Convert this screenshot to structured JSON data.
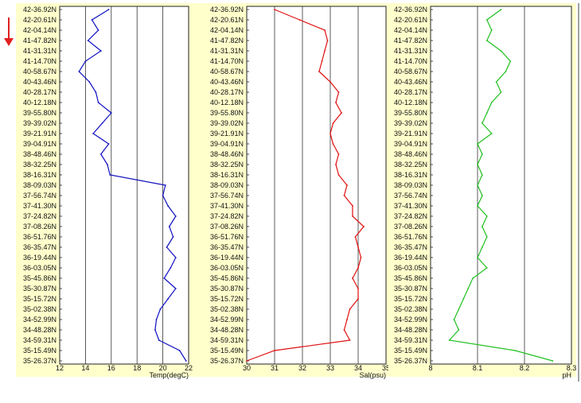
{
  "colors": {
    "panel_bg": "#ffffcc",
    "temp_line": "#1010c0",
    "sal_line": "#e01010",
    "ph_line": "#20c020",
    "arrow": "#e02020"
  },
  "arrow_icon": "down-arrow-icon",
  "chart_data": [
    {
      "type": "line",
      "xlabel": "Temp(degC)",
      "xlim": [
        12,
        22
      ],
      "xticks": [
        "12",
        "14",
        "16",
        "18",
        "20",
        "22"
      ],
      "ylabels": [
        "42-36.92N",
        "42-20.61N",
        "42-04.14N",
        "41-47.82N",
        "41-31.31N",
        "41-14.70N",
        "40-58.67N",
        "40-43.46N",
        "40-28.17N",
        "40-12.18N",
        "39-55.80N",
        "39-39.02N",
        "39-21.91N",
        "39-04.91N",
        "38-48.46N",
        "38-32.25N",
        "38-16.31N",
        "38-09.03N",
        "37-56.74N",
        "37-41.30N",
        "37-24.82N",
        "37-08.26N",
        "36-51.76N",
        "36-35.47N",
        "36-19.44N",
        "36-03.05N",
        "35-45.86N",
        "35-30.87N",
        "35-15.72N",
        "35-02.38N",
        "34-52.99N",
        "34-48.28N",
        "34-59.31N",
        "35-15.49N",
        "35-26.37N"
      ],
      "grid": true,
      "series": [
        {
          "values": [
            15.8,
            14.5,
            15.0,
            14.2,
            15.2,
            14.0,
            13.5,
            14.3,
            14.8,
            15.0,
            16.0,
            15.3,
            14.6,
            15.8,
            15.2,
            15.7,
            15.9,
            20.2,
            20.0,
            20.4,
            21.0,
            20.5,
            20.8,
            20.3,
            21.0,
            20.6,
            20.1,
            21.0,
            20.4,
            19.8,
            19.5,
            19.4,
            19.7,
            21.3,
            21.8
          ]
        }
      ]
    },
    {
      "type": "line",
      "xlabel": "Sal(psu)",
      "xlim": [
        30,
        35
      ],
      "xticks": [
        "30",
        "31",
        "32",
        "33",
        "34",
        "35"
      ],
      "ylabels": [
        "42-36.92N",
        "42-20.61N",
        "42-04.14N",
        "41-47.82N",
        "41-31.31N",
        "41-14.70N",
        "40-58.67N",
        "40-43.46N",
        "40-28.17N",
        "40-12.18N",
        "39-55.80N",
        "39-39.02N",
        "39-21.91N",
        "39-04.91N",
        "38-48.46N",
        "38-32.25N",
        "38-16.31N",
        "38-09.03N",
        "37-56.74N",
        "37-41.30N",
        "37-24.82N",
        "37-08.26N",
        "36-51.76N",
        "36-35.47N",
        "36-19.44N",
        "36-03.05N",
        "35-45.86N",
        "35-30.87N",
        "35-15.72N",
        "35-02.38N",
        "34-52.99N",
        "34-48.28N",
        "34-59.31N",
        "35-15.49N",
        "35-26.37N"
      ],
      "grid": true,
      "series": [
        {
          "values": [
            31.0,
            31.9,
            32.8,
            32.9,
            32.8,
            32.7,
            32.6,
            33.0,
            33.3,
            33.2,
            33.4,
            33.1,
            33.0,
            33.1,
            33.3,
            33.2,
            33.3,
            33.6,
            33.5,
            33.8,
            33.8,
            34.2,
            33.9,
            34.0,
            34.1,
            34.0,
            33.8,
            34.0,
            34.0,
            33.7,
            33.6,
            33.5,
            33.7,
            31.0,
            30.0
          ]
        }
      ]
    },
    {
      "type": "line",
      "xlabel": "pH",
      "xlim": [
        8,
        8.3
      ],
      "xticks": [
        "8",
        "8.1",
        "8.2",
        "8.3"
      ],
      "ylabels": [
        "42-36.92N",
        "42-20.61N",
        "42-04.14N",
        "41-47.82N",
        "41-31.31N",
        "41-14.70N",
        "40-58.67N",
        "40-43.46N",
        "40-28.17N",
        "40-12.18N",
        "39-55.80N",
        "39-39.02N",
        "39-21.91N",
        "39-04.91N",
        "38-48.46N",
        "38-32.25N",
        "38-16.31N",
        "38-09.03N",
        "37-56.74N",
        "37-41.30N",
        "37-24.82N",
        "37-08.26N",
        "36-51.76N",
        "36-35.47N",
        "36-19.44N",
        "36-03.05N",
        "35-45.86N",
        "35-30.87N",
        "35-15.72N",
        "35-02.38N",
        "34-52.99N",
        "34-48.28N",
        "34-59.31N",
        "35-15.49N",
        "35-26.37N"
      ],
      "grid": true,
      "series": [
        {
          "values": [
            8.15,
            8.12,
            8.13,
            8.12,
            8.15,
            8.17,
            8.16,
            8.14,
            8.15,
            8.13,
            8.12,
            8.11,
            8.13,
            8.1,
            8.11,
            8.1,
            8.11,
            8.1,
            8.11,
            8.1,
            8.12,
            8.11,
            8.12,
            8.11,
            8.1,
            8.12,
            8.09,
            8.08,
            8.07,
            8.06,
            8.05,
            8.06,
            8.04,
            8.18,
            8.26
          ]
        }
      ]
    }
  ]
}
